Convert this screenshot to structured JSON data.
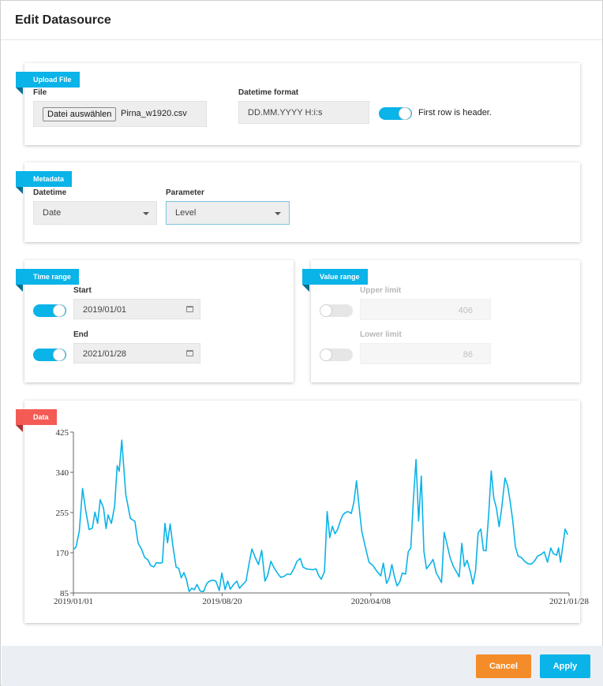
{
  "dialog": {
    "title": "Edit Datasource"
  },
  "upload": {
    "section": "Upload File",
    "file_label": "File",
    "file_button": "Datei auswählen",
    "file_name": "Pirna_w1920.csv",
    "datetime_format_label": "Datetime format",
    "datetime_format_value": "DD.MM.YYYY H:i:s",
    "header_toggle_label": "First row is header.",
    "header_toggle_on": true
  },
  "metadata": {
    "section": "Metadata",
    "datetime_label": "Datetime",
    "datetime_value": "Date",
    "parameter_label": "Parameter",
    "parameter_value": "Level"
  },
  "time_range": {
    "section": "Time range",
    "start_label": "Start",
    "start_value": "2019/01/01",
    "end_label": "End",
    "end_value": "2021/01/28"
  },
  "value_range": {
    "section": "Value range",
    "upper_label": "Upper limit",
    "upper_value": "406",
    "lower_label": "Lower limit",
    "lower_value": "86"
  },
  "data": {
    "section": "Data"
  },
  "chart_data": {
    "type": "line",
    "color": "#0ab3e8",
    "x_ticks": [
      "2019/01/01",
      "2019/08/20",
      "2020/04/08",
      "2021/01/28"
    ],
    "y_ticks": [
      "425",
      "340",
      "255",
      "170",
      "85"
    ],
    "ylim": [
      85,
      425
    ],
    "xlim_days": [
      0,
      758
    ],
    "points": [
      [
        0,
        177
      ],
      [
        4,
        182
      ],
      [
        9,
        216
      ],
      [
        14,
        306
      ],
      [
        19,
        258
      ],
      [
        24,
        219
      ],
      [
        29,
        222
      ],
      [
        33,
        256
      ],
      [
        37,
        232
      ],
      [
        41,
        282
      ],
      [
        46,
        265
      ],
      [
        50,
        221
      ],
      [
        53,
        250
      ],
      [
        58,
        232
      ],
      [
        63,
        268
      ],
      [
        67,
        354
      ],
      [
        70,
        342
      ],
      [
        74,
        408
      ],
      [
        80,
        294
      ],
      [
        87,
        243
      ],
      [
        94,
        236
      ],
      [
        99,
        190
      ],
      [
        104,
        178
      ],
      [
        109,
        160
      ],
      [
        114,
        155
      ],
      [
        118,
        143
      ],
      [
        123,
        140
      ],
      [
        127,
        149
      ],
      [
        132,
        148
      ],
      [
        136,
        149
      ],
      [
        140,
        232
      ],
      [
        144,
        191
      ],
      [
        148,
        231
      ],
      [
        152,
        186
      ],
      [
        157,
        140
      ],
      [
        161,
        137
      ],
      [
        165,
        117
      ],
      [
        169,
        128
      ],
      [
        173,
        113
      ],
      [
        177,
        88
      ],
      [
        181,
        95
      ],
      [
        185,
        92
      ],
      [
        189,
        103
      ],
      [
        194,
        89
      ],
      [
        199,
        88
      ],
      [
        204,
        105
      ],
      [
        208,
        110
      ],
      [
        213,
        112
      ],
      [
        218,
        110
      ],
      [
        223,
        90
      ],
      [
        227,
        127
      ],
      [
        232,
        92
      ],
      [
        236,
        110
      ],
      [
        240,
        93
      ],
      [
        245,
        103
      ],
      [
        250,
        110
      ],
      [
        254,
        95
      ],
      [
        259,
        103
      ],
      [
        264,
        110
      ],
      [
        269,
        150
      ],
      [
        273,
        178
      ],
      [
        278,
        160
      ],
      [
        283,
        145
      ],
      [
        288,
        175
      ],
      [
        293,
        110
      ],
      [
        297,
        122
      ],
      [
        302,
        152
      ],
      [
        307,
        138
      ],
      [
        312,
        127
      ],
      [
        317,
        118
      ],
      [
        322,
        120
      ],
      [
        327,
        125
      ],
      [
        332,
        124
      ],
      [
        337,
        136
      ],
      [
        342,
        152
      ],
      [
        347,
        158
      ],
      [
        351,
        140
      ],
      [
        356,
        136
      ],
      [
        361,
        135
      ],
      [
        366,
        134
      ],
      [
        371,
        136
      ],
      [
        375,
        122
      ],
      [
        379,
        114
      ],
      [
        384,
        130
      ],
      [
        388,
        257
      ],
      [
        392,
        202
      ],
      [
        396,
        226
      ],
      [
        400,
        210
      ],
      [
        404,
        219
      ],
      [
        408,
        236
      ],
      [
        412,
        250
      ],
      [
        416,
        255
      ],
      [
        420,
        257
      ],
      [
        425,
        253
      ],
      [
        429,
        277
      ],
      [
        433,
        322
      ],
      [
        437,
        265
      ],
      [
        441,
        215
      ],
      [
        446,
        185
      ],
      [
        452,
        150
      ],
      [
        458,
        143
      ],
      [
        464,
        131
      ],
      [
        470,
        121
      ],
      [
        474,
        148
      ],
      [
        479,
        105
      ],
      [
        483,
        117
      ],
      [
        487,
        145
      ],
      [
        491,
        119
      ],
      [
        495,
        100
      ],
      [
        499,
        108
      ],
      [
        503,
        127
      ],
      [
        508,
        125
      ],
      [
        512,
        172
      ],
      [
        516,
        180
      ],
      [
        520,
        283
      ],
      [
        524,
        367
      ],
      [
        528,
        237
      ],
      [
        532,
        332
      ],
      [
        536,
        173
      ],
      [
        540,
        136
      ],
      [
        545,
        145
      ],
      [
        550,
        156
      ],
      [
        555,
        127
      ],
      [
        559,
        117
      ],
      [
        563,
        107
      ],
      [
        567,
        213
      ],
      [
        571,
        190
      ],
      [
        576,
        160
      ],
      [
        581,
        141
      ],
      [
        586,
        129
      ],
      [
        590,
        119
      ],
      [
        594,
        190
      ],
      [
        598,
        141
      ],
      [
        602,
        154
      ],
      [
        607,
        130
      ],
      [
        611,
        104
      ],
      [
        615,
        132
      ],
      [
        619,
        212
      ],
      [
        623,
        220
      ],
      [
        627,
        175
      ],
      [
        631,
        174
      ],
      [
        635,
        250
      ],
      [
        639,
        343
      ],
      [
        643,
        285
      ],
      [
        647,
        264
      ],
      [
        651,
        225
      ],
      [
        655,
        265
      ],
      [
        660,
        328
      ],
      [
        664,
        312
      ],
      [
        668,
        278
      ],
      [
        672,
        237
      ],
      [
        676,
        182
      ],
      [
        680,
        163
      ],
      [
        685,
        160
      ],
      [
        690,
        152
      ],
      [
        695,
        147
      ],
      [
        700,
        146
      ],
      [
        705,
        152
      ],
      [
        710,
        163
      ],
      [
        715,
        166
      ],
      [
        720,
        172
      ],
      [
        725,
        150
      ],
      [
        730,
        180
      ],
      [
        734,
        168
      ],
      [
        739,
        165
      ],
      [
        742,
        180
      ],
      [
        745,
        150
      ],
      [
        748,
        180
      ],
      [
        752,
        220
      ],
      [
        756,
        208
      ]
    ]
  },
  "footer": {
    "cancel": "Cancel",
    "apply": "Apply"
  }
}
